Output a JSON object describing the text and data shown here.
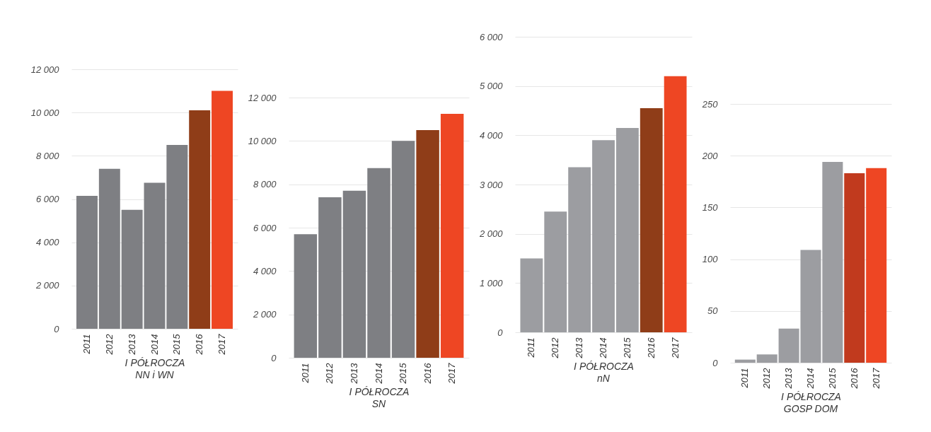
{
  "chart_data": [
    {
      "type": "bar",
      "categories": [
        "2011",
        "2012",
        "2013",
        "2014",
        "2015",
        "2016",
        "2017"
      ],
      "values": [
        6150,
        7400,
        5500,
        6750,
        8500,
        10100,
        11000
      ],
      "colors": [
        "#7e7f83",
        "#7e7f83",
        "#7e7f83",
        "#7e7f83",
        "#7e7f83",
        "#8f3d18",
        "#ee4623"
      ],
      "xlabel": "I PÓŁROCZA",
      "title": "NN i WN",
      "ylim": [
        0,
        12000
      ],
      "yticks": [
        0,
        {
          "value": 2000,
          "label": "2 000"
        },
        {
          "value": 4000,
          "label": "4 000"
        },
        {
          "value": 6000,
          "label": "6 000"
        },
        {
          "value": 8000,
          "label": "8 000"
        },
        {
          "value": 10000,
          "label": "10 000"
        },
        {
          "value": 12000,
          "label": "12 000"
        }
      ],
      "grid": "y"
    },
    {
      "type": "bar",
      "categories": [
        "2011",
        "2012",
        "2013",
        "2014",
        "2015",
        "2016",
        "2017"
      ],
      "values": [
        5700,
        7400,
        7700,
        8750,
        10000,
        10500,
        11250
      ],
      "colors": [
        "#7e7f83",
        "#7e7f83",
        "#7e7f83",
        "#7e7f83",
        "#7e7f83",
        "#8f3d18",
        "#ee4623"
      ],
      "xlabel": "I PÓŁROCZA",
      "title": "SN",
      "ylim": [
        0,
        12000
      ],
      "yticks": [
        0,
        {
          "value": 2000,
          "label": "2 000"
        },
        {
          "value": 4000,
          "label": "4 000"
        },
        {
          "value": 6000,
          "label": "6 000"
        },
        {
          "value": 8000,
          "label": "8 000"
        },
        {
          "value": 10000,
          "label": "10 000"
        },
        {
          "value": 12000,
          "label": "12 000"
        }
      ],
      "grid": "y"
    },
    {
      "type": "bar",
      "categories": [
        "2011",
        "2012",
        "2013",
        "2014",
        "2015",
        "2016",
        "2017"
      ],
      "values": [
        1500,
        2450,
        3350,
        3900,
        4150,
        4550,
        5200
      ],
      "colors": [
        "#9c9da1",
        "#9c9da1",
        "#9c9da1",
        "#9c9da1",
        "#9c9da1",
        "#8f3d18",
        "#ee4623"
      ],
      "xlabel": "I PÓŁROCZA",
      "title": "nN",
      "ylim": [
        0,
        6000
      ],
      "yticks": [
        0,
        {
          "value": 1000,
          "label": "1 000"
        },
        {
          "value": 2000,
          "label": "2 000"
        },
        {
          "value": 3000,
          "label": "3 000"
        },
        {
          "value": 4000,
          "label": "4 000"
        },
        {
          "value": 5000,
          "label": "5 000"
        },
        {
          "value": 6000,
          "label": "6 000"
        }
      ],
      "grid": "y"
    },
    {
      "type": "bar",
      "categories": [
        "2011",
        "2012",
        "2013",
        "2014",
        "2015",
        "2016",
        "2017"
      ],
      "values": [
        3,
        8,
        33,
        109,
        194,
        183,
        188
      ],
      "colors": [
        "#9c9da1",
        "#9c9da1",
        "#9c9da1",
        "#9c9da1",
        "#9c9da1",
        "#c13a1e",
        "#ee4623"
      ],
      "xlabel": "I PÓŁROCZA",
      "title": "GOSP DOM",
      "ylim": [
        0,
        250
      ],
      "yticks": [
        0,
        50,
        100,
        150,
        200,
        250
      ],
      "grid": "y"
    }
  ]
}
